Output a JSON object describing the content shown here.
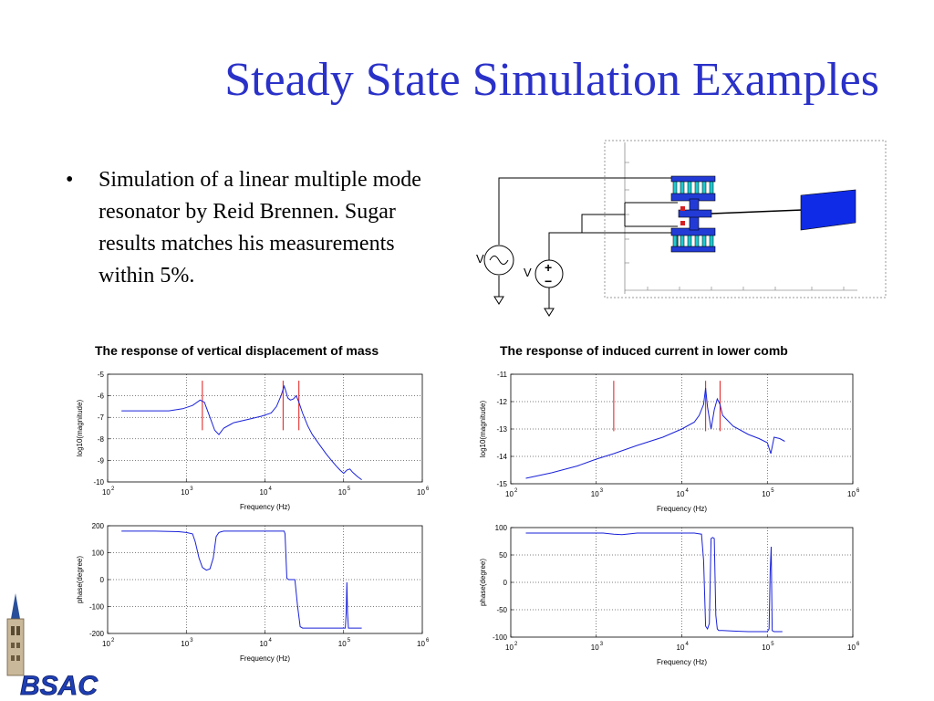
{
  "slide": {
    "title": "Steady State Simulation Examples",
    "bullet": "Simulation of a linear multiple mode resonator by Reid Brennen. Sugar results matches his measurements within 5%.",
    "bullet_symbol": "•"
  },
  "diagram": {
    "source_symbol_ac": "V",
    "source_symbol_dc": "V",
    "plus_sign": "+",
    "minus_sign": "−"
  },
  "logo": {
    "text": "BSAC"
  },
  "chart_data": [
    {
      "type": "line",
      "title": "The response of vertical displacement of mass",
      "xlabel": "Frequency (Hz)",
      "ylabel": "log10(magnitude)",
      "xscale": "log",
      "xlim": [
        100,
        1000000
      ],
      "ylim": [
        -10,
        -5
      ],
      "yticks": [
        "-5",
        "-6",
        "-7",
        "-8",
        "-9",
        "-10"
      ],
      "xtick_exponents": [
        "2",
        "3",
        "4",
        "5",
        "6"
      ],
      "grid": true,
      "series": [
        {
          "x": [
            150,
            300,
            600,
            900,
            1200,
            1500,
            1700,
            2000,
            2300,
            2600,
            3000,
            4000,
            6000,
            9000,
            12000,
            14000,
            16000,
            17500,
            18500,
            19500,
            21000,
            23000,
            25000,
            27000,
            30000,
            35000,
            40000,
            50000,
            60000,
            70000,
            80000,
            90000,
            100000,
            110000,
            120000,
            130000,
            150000,
            170000
          ],
          "y": [
            -6.7,
            -6.7,
            -6.7,
            -6.6,
            -6.45,
            -6.2,
            -6.3,
            -7.0,
            -7.6,
            -7.8,
            -7.5,
            -7.25,
            -7.1,
            -6.95,
            -6.8,
            -6.5,
            -6.0,
            -5.55,
            -5.8,
            -6.1,
            -6.2,
            -6.15,
            -6.0,
            -6.3,
            -6.8,
            -7.4,
            -7.8,
            -8.3,
            -8.7,
            -9.0,
            -9.25,
            -9.45,
            -9.6,
            -9.45,
            -9.4,
            -9.55,
            -9.75,
            -9.9
          ]
        }
      ],
      "markers_x": [
        1600,
        17000,
        27000
      ]
    },
    {
      "type": "line",
      "title": "",
      "xlabel": "Frequency (Hz)",
      "ylabel": "phase(degree)",
      "xscale": "log",
      "xlim": [
        100,
        1000000
      ],
      "ylim": [
        -200,
        200
      ],
      "yticks": [
        "200",
        "100",
        "0",
        "-100",
        "-200"
      ],
      "xtick_exponents": [
        "2",
        "3",
        "4",
        "5",
        "6"
      ],
      "grid": true,
      "series": [
        {
          "x": [
            150,
            400,
            800,
            1000,
            1200,
            1300,
            1450,
            1600,
            1800,
            2000,
            2200,
            2400,
            2600,
            2800,
            3000,
            4000,
            8000,
            15000,
            17500,
            18000,
            19000,
            20000,
            22000,
            24000,
            26000,
            28000,
            30000,
            40000,
            60000,
            100000,
            105000,
            108000,
            110000,
            112000,
            115000,
            120000,
            130000,
            150000,
            170000
          ],
          "y": [
            180,
            180,
            178,
            175,
            170,
            140,
            80,
            45,
            35,
            40,
            80,
            160,
            175,
            178,
            180,
            180,
            180,
            180,
            180,
            170,
            5,
            0,
            0,
            0,
            -100,
            -175,
            -180,
            -180,
            -180,
            -180,
            -180,
            -120,
            -10,
            -120,
            -180,
            -180,
            -180,
            -180,
            -180
          ]
        }
      ]
    },
    {
      "type": "line",
      "title": "The response of induced current in lower comb",
      "xlabel": "Frequency (Hz)",
      "ylabel": "log10(magnitude)",
      "xscale": "log",
      "xlim": [
        100,
        1000000
      ],
      "ylim": [
        -15,
        -11
      ],
      "yticks": [
        "-11",
        "-12",
        "-13",
        "-14",
        "-15"
      ],
      "xtick_exponents": [
        "2",
        "3",
        "4",
        "5",
        "6"
      ],
      "grid": true,
      "series": [
        {
          "x": [
            150,
            300,
            600,
            1000,
            1600,
            3000,
            6000,
            10000,
            14000,
            16000,
            18000,
            19000,
            20000,
            22000,
            24000,
            26000,
            28000,
            30000,
            40000,
            60000,
            80000,
            100000,
            105000,
            110000,
            115000,
            120000,
            140000,
            160000
          ],
          "y": [
            -14.8,
            -14.6,
            -14.35,
            -14.1,
            -13.9,
            -13.6,
            -13.3,
            -13.0,
            -12.75,
            -12.5,
            -12.1,
            -11.5,
            -12.2,
            -13.0,
            -12.3,
            -11.9,
            -12.1,
            -12.5,
            -12.9,
            -13.2,
            -13.35,
            -13.5,
            -13.7,
            -13.9,
            -13.6,
            -13.3,
            -13.35,
            -13.45
          ]
        }
      ],
      "markers_x": [
        1600,
        19000,
        28000
      ]
    },
    {
      "type": "line",
      "title": "",
      "xlabel": "Frequency (Hz)",
      "ylabel": "phase(degree)",
      "xscale": "log",
      "xlim": [
        100,
        1000000
      ],
      "ylim": [
        -100,
        100
      ],
      "yticks": [
        "100",
        "50",
        "0",
        "-50",
        "-100"
      ],
      "xtick_exponents": [
        "2",
        "3",
        "4",
        "5",
        "6"
      ],
      "grid": true,
      "series": [
        {
          "x": [
            150,
            600,
            1200,
            1600,
            2000,
            3000,
            6000,
            10000,
            14000,
            17000,
            18000,
            19000,
            20000,
            21000,
            22000,
            23000,
            24000,
            25000,
            26000,
            27000,
            28000,
            30000,
            40000,
            60000,
            90000,
            100000,
            105000,
            108000,
            111000,
            114000,
            120000,
            150000
          ],
          "y": [
            90,
            90,
            90,
            88,
            87,
            90,
            90,
            90,
            90,
            88,
            40,
            -80,
            -85,
            -75,
            80,
            82,
            80,
            -60,
            -85,
            -88,
            -88,
            -88,
            -89,
            -90,
            -90,
            -90,
            -85,
            20,
            65,
            -88,
            -90,
            -90
          ]
        }
      ]
    }
  ]
}
